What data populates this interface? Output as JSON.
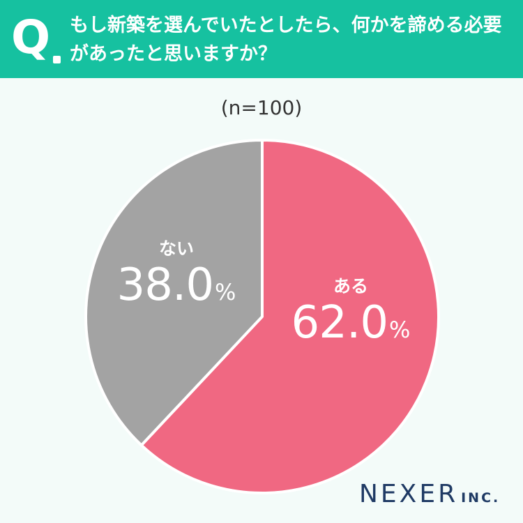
{
  "header": {
    "q_label": "Q",
    "question_lines": [
      "もし新築を選んでいたとしたら、何かを諦める必要",
      "があったと思いますか？"
    ]
  },
  "sample_size": "(n=100)",
  "colors": {
    "header_bg": "#16c1a0",
    "aru": "#f06882",
    "nai": "#a3a3a3",
    "brand": "#1f3a64"
  },
  "chart_data": {
    "type": "pie",
    "title": "",
    "categories": [
      "ある",
      "ない"
    ],
    "values": [
      62.0,
      38.0
    ],
    "value_labels": [
      "62.0",
      "38.0"
    ],
    "unit": "%",
    "start": "top, clockwise"
  },
  "brand": {
    "name": "NEXER",
    "suffix": "INC."
  }
}
